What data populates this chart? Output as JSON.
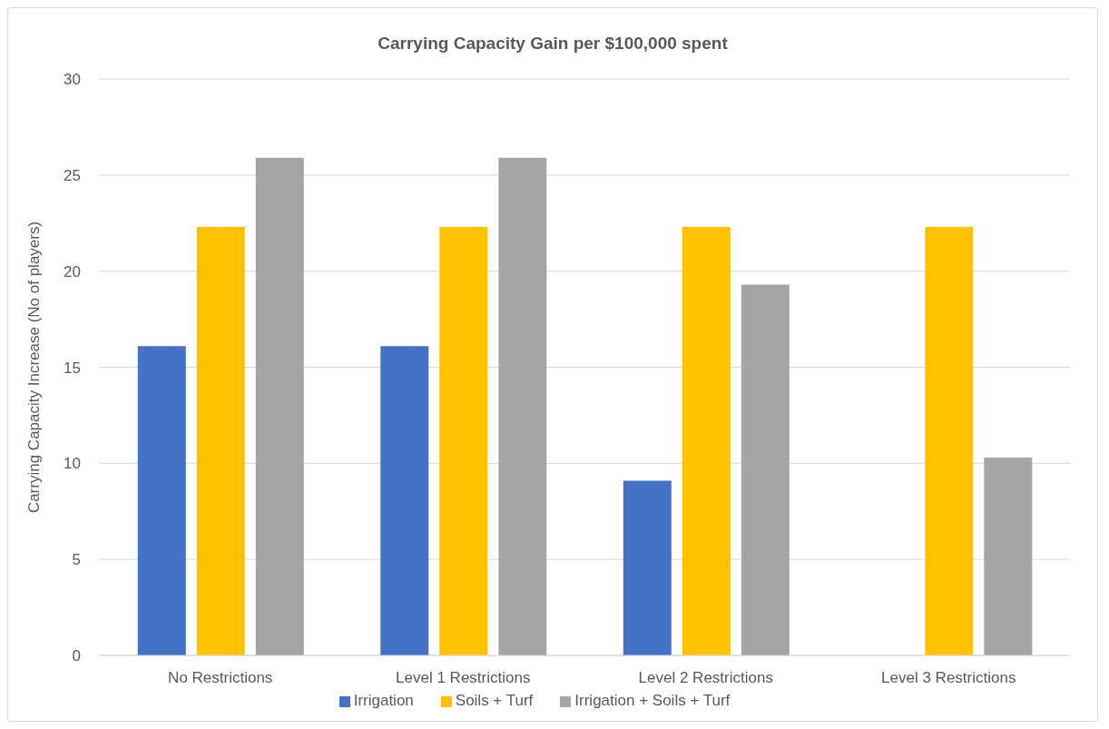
{
  "chart_data": {
    "type": "bar",
    "title": "Carrying Capacity Gain per $100,000 spent",
    "ylabel": "Carrying Capacity Increase (No of players)",
    "categories": [
      "No Restrictions",
      "Level 1 Restrictions",
      "Level 2 Restrictions",
      "Level 3 Restrictions"
    ],
    "series": [
      {
        "name": "Irrigation",
        "color": "#4472c4",
        "values": [
          16.1,
          16.1,
          9.1,
          0
        ]
      },
      {
        "name": "Soils + Turf",
        "color": "#ffc000",
        "values": [
          22.3,
          22.3,
          22.3,
          22.3
        ]
      },
      {
        "name": "Irrigation + Soils + Turf",
        "color": "#a5a5a5",
        "values": [
          25.9,
          25.9,
          19.3,
          10.3
        ]
      }
    ],
    "ylim": [
      0,
      30
    ],
    "yticks": [
      0,
      5,
      10,
      15,
      20,
      25,
      30
    ],
    "grid": "y",
    "legend": "bottom"
  }
}
